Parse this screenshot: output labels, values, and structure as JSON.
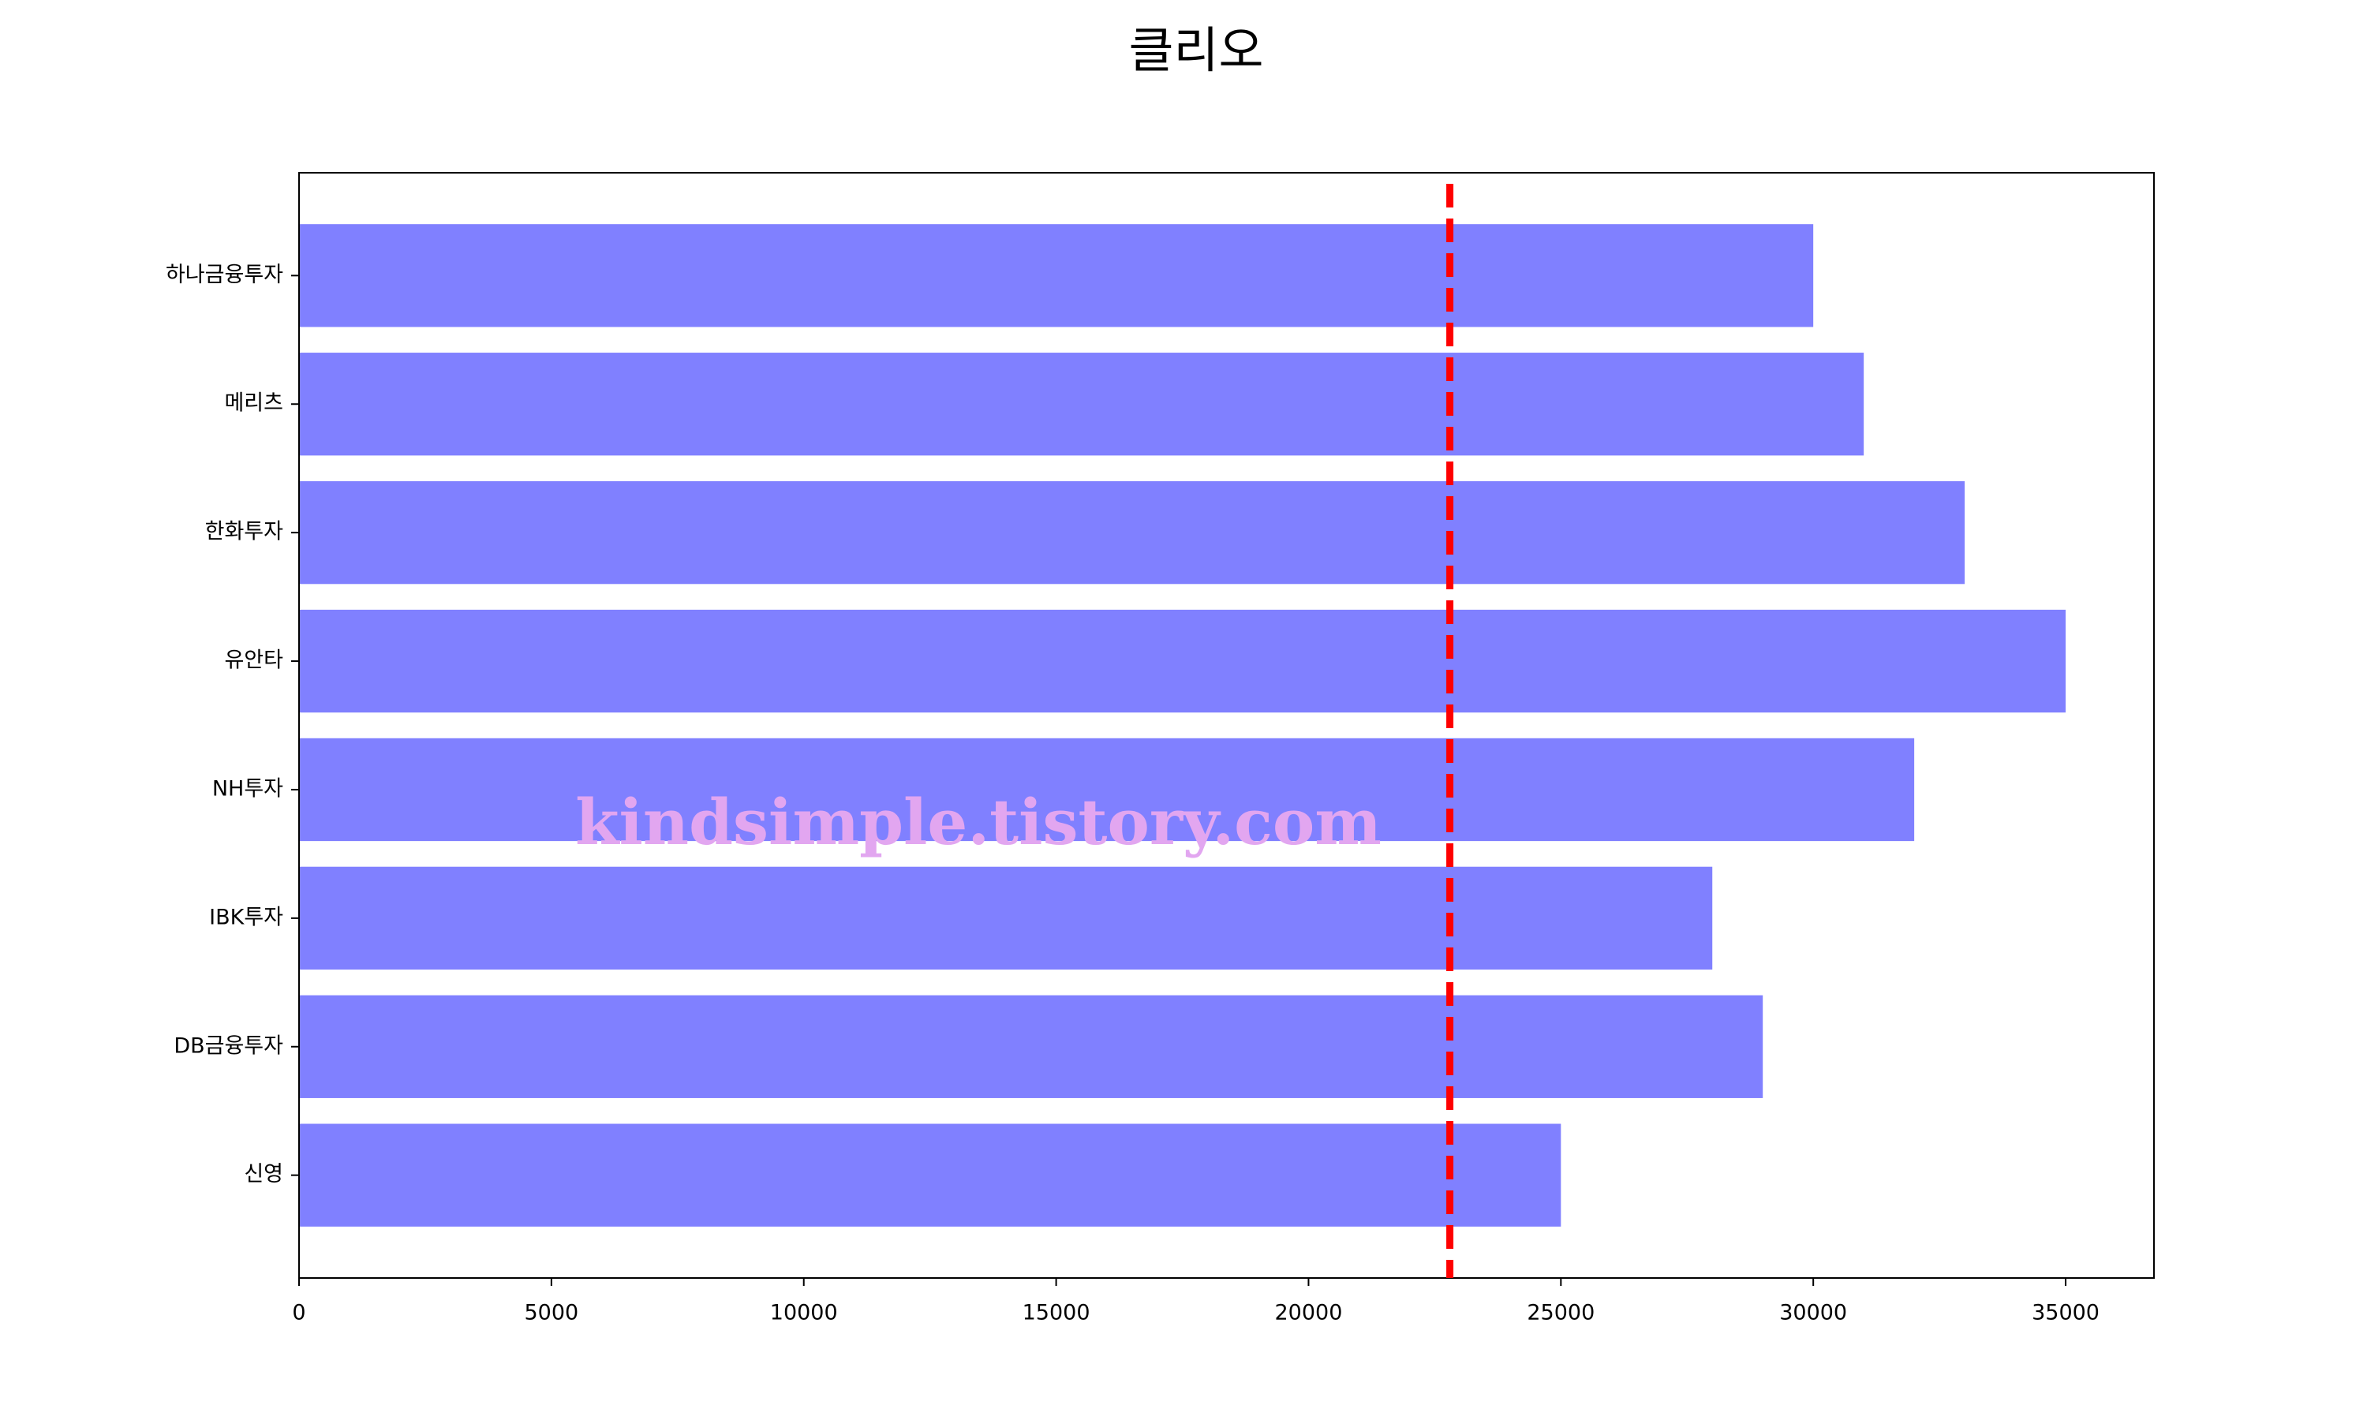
{
  "chart_data": {
    "type": "barh",
    "title": "클리오",
    "categories": [
      "하나금융투자",
      "메리츠",
      "한화투자",
      "유안타",
      "NH투자",
      "IBK투자",
      "DB금융투자",
      "신영"
    ],
    "values": [
      30000,
      31000,
      33000,
      35000,
      32000,
      28000,
      29000,
      25000
    ],
    "color": "#8080ff",
    "xlim": [
      0,
      36750
    ],
    "xticks": [
      0,
      5000,
      10000,
      15000,
      20000,
      25000,
      30000,
      35000
    ],
    "reference_line": {
      "value": 22800,
      "color": "#ff0000"
    },
    "watermark": "kindsimple.tistory.com"
  }
}
